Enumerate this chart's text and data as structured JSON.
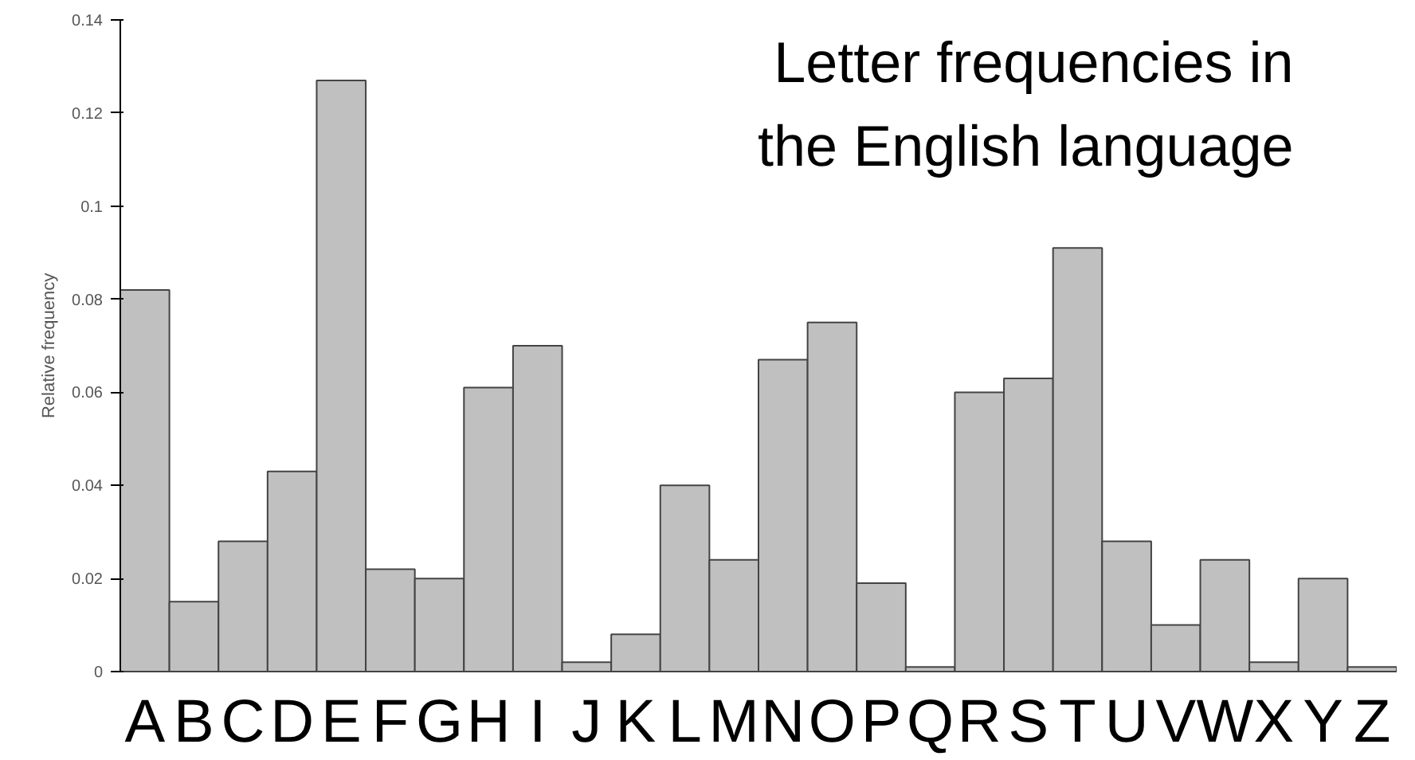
{
  "chart_data": {
    "type": "bar",
    "title": "Letter frequencies in the English language",
    "ylabel": "Relative frequency",
    "categories": [
      "A",
      "B",
      "C",
      "D",
      "E",
      "F",
      "G",
      "H",
      "I",
      "J",
      "K",
      "L",
      "M",
      "N",
      "O",
      "P",
      "Q",
      "R",
      "S",
      "T",
      "U",
      "V",
      "W",
      "X",
      "Y",
      "Z"
    ],
    "values": [
      0.082,
      0.015,
      0.028,
      0.043,
      0.127,
      0.022,
      0.02,
      0.061,
      0.07,
      0.002,
      0.008,
      0.04,
      0.024,
      0.067,
      0.075,
      0.019,
      0.001,
      0.06,
      0.063,
      0.091,
      0.028,
      0.01,
      0.024,
      0.002,
      0.02,
      0.001
    ],
    "color": "#c0c0c0",
    "ylim": [
      0,
      0.14
    ],
    "yticks": [
      0,
      0.02,
      0.04,
      0.06,
      0.08,
      {
        "value": 0.1,
        "label": "0.1"
      },
      0.12,
      0.14
    ],
    "grid": false
  }
}
